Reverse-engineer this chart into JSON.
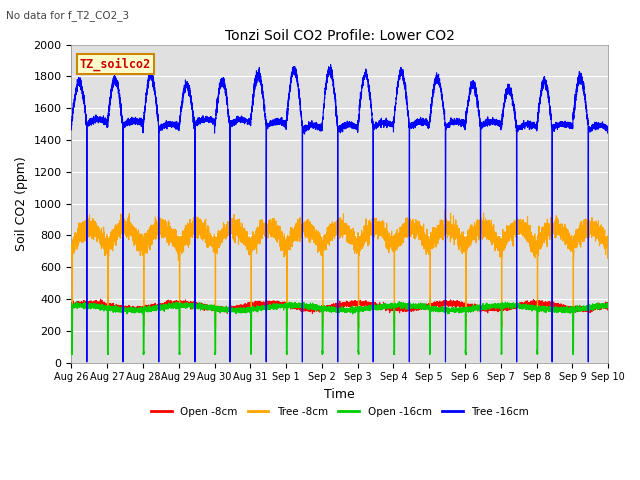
{
  "title": "Tonzi Soil CO2 Profile: Lower CO2",
  "subtitle": "No data for f_T2_CO2_3",
  "ylabel": "Soil CO2 (ppm)",
  "xlabel": "Time",
  "legend_label": "TZ_soilco2",
  "ylim": [
    0,
    2000
  ],
  "series_labels": [
    "Open -8cm",
    "Tree -8cm",
    "Open -16cm",
    "Tree -16cm"
  ],
  "series_colors": [
    "#ff0000",
    "#ffa500",
    "#00cc00",
    "#0000ff"
  ],
  "bg_color": "#e0e0e0",
  "grid_color": "#ffffff",
  "tick_dates": [
    "Aug 26",
    "Aug 27",
    "Aug 28",
    "Aug 29",
    "Aug 30",
    "Aug 31",
    "Sep 1",
    "Sep 2",
    "Sep 3",
    "Sep 4",
    "Sep 5",
    "Sep 6",
    "Sep 7",
    "Sep 8",
    "Sep 9",
    "Sep 10"
  ],
  "figsize": [
    6.4,
    4.8
  ],
  "dpi": 100
}
